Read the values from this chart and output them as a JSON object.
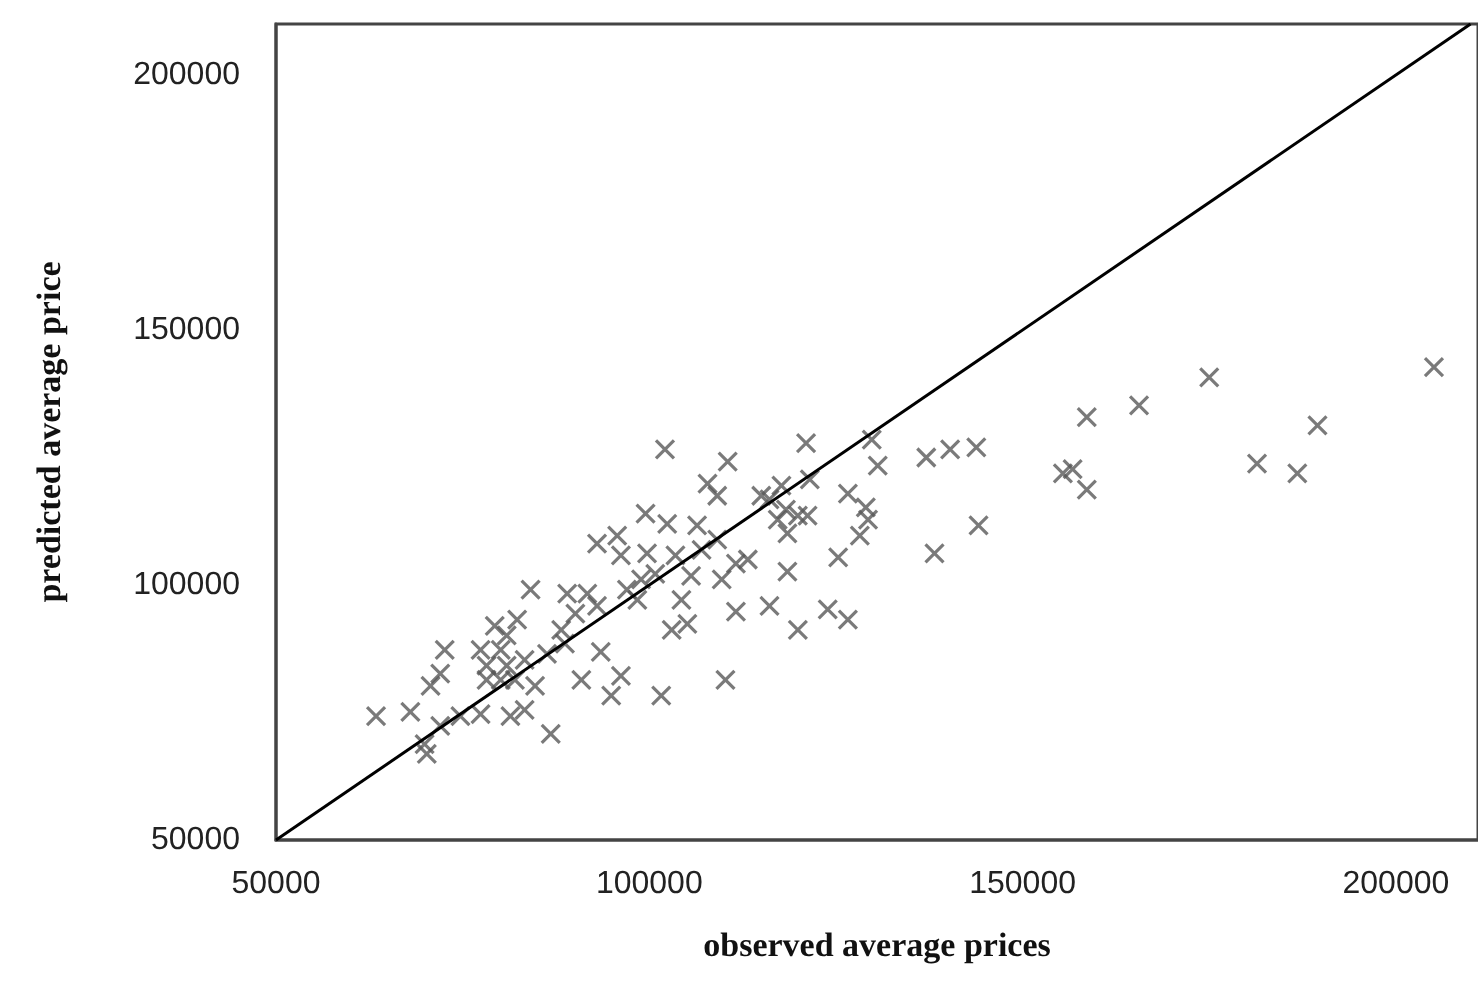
{
  "chart_data": {
    "type": "scatter",
    "xlabel": "observed average prices",
    "ylabel": "predicted average price",
    "xlim": [
      50000,
      211000
    ],
    "ylim": [
      50000,
      210000
    ],
    "xticks": [
      50000,
      100000,
      150000,
      200000
    ],
    "yticks": [
      50000,
      100000,
      150000,
      200000
    ],
    "marker": "cross",
    "series": [
      {
        "color": "#595959",
        "x": [
          102100,
          110500,
          107800,
          109100,
          115000,
          121200,
          111600,
          110200,
          101600,
          94900,
          96200,
          90900,
          93500,
          86800,
          83300,
          81400,
          84700,
          84100,
          93000,
          95700,
          99500,
          102400,
          106400,
          103500,
          100800,
          98400,
          98900,
          105600,
          104300,
          103000,
          105100,
          111600,
          109700,
          113200,
          109100,
          107000,
          99700,
          96200,
          97000,
          91700,
          89000,
          90100,
          93000,
          88200,
          88700,
          86300,
          82300,
          80900,
          79300,
          80100,
          78200,
          77400,
          80900,
          82000,
          83300,
          80100,
          78200,
          72600,
          72000,
          70700,
          68000,
          63400,
          72000,
          69900,
          70200,
          77400,
          74700,
          121000,
          129800,
          130600,
          126600,
          129000,
          129300,
          128200,
          125300,
          123900,
          126600,
          119900,
          116100,
          118500,
          118500,
          121500,
          117700,
          116100,
          118300,
          119900,
          117200,
          137100,
          140300,
          143800,
          144100,
          138200,
          155400,
          156700,
          158600,
          158600,
          165600,
          175000,
          181400,
          186800,
          189500,
          205100
        ],
        "values": [
          126600,
          124200,
          119900,
          117500,
          117500,
          113600,
          94800,
          81400,
          78300,
          78300,
          82200,
          81400,
          86900,
          70800,
          75500,
          74300,
          80200,
          99100,
          108100,
          109700,
          114000,
          112000,
          111700,
          105800,
          102200,
          97100,
          101100,
          101800,
          97100,
          91200,
          92400,
          104200,
          101100,
          105000,
          108900,
          106900,
          106200,
          105800,
          99100,
          98300,
          98300,
          94400,
          95900,
          91200,
          88500,
          86500,
          93200,
          90100,
          92000,
          87300,
          84200,
          87300,
          84200,
          81400,
          85300,
          81400,
          81400,
          87300,
          82600,
          80200,
          75100,
          74300,
          72400,
          68800,
          66900,
          74700,
          74300,
          127800,
          128500,
          123400,
          117900,
          115200,
          112800,
          109700,
          105400,
          95200,
          93200,
          91200,
          95900,
          102600,
          110100,
          120700,
          119500,
          116800,
          114800,
          113600,
          112800,
          125000,
          126600,
          127000,
          111700,
          106200,
          121900,
          122700,
          118700,
          132900,
          135200,
          140700,
          123800,
          121900,
          131300,
          142700
        ]
      },
      {
        "type": "line",
        "color": "#000000",
        "marker": "none",
        "x": [
          50000,
          210000
        ],
        "values": [
          50000,
          210000
        ]
      }
    ]
  }
}
